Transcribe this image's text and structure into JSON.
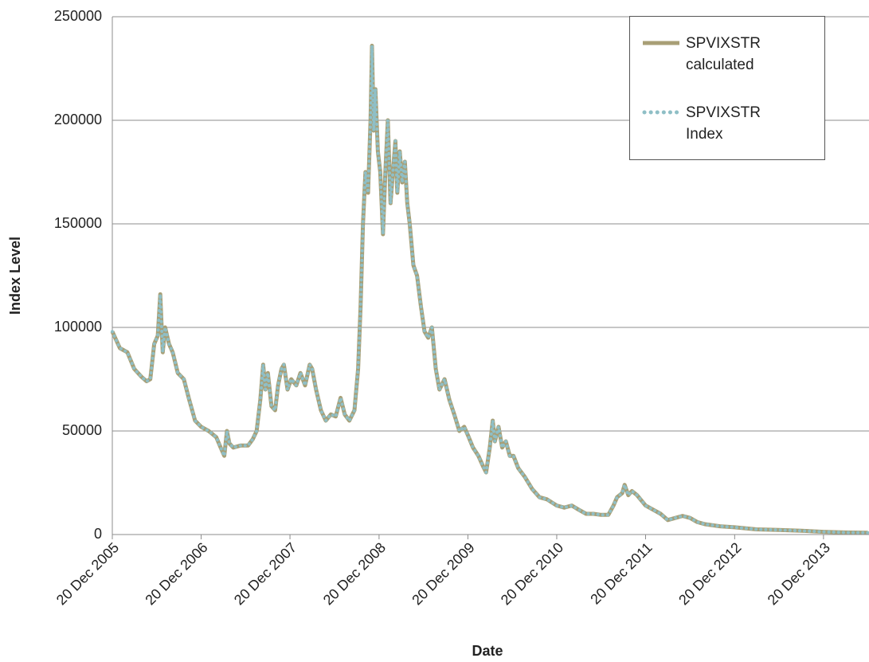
{
  "chart_data": {
    "type": "line",
    "xlabel": "Date",
    "ylabel": "Index Level",
    "x": [
      "2005-12-20",
      "2006-01-20",
      "2006-02-20",
      "2006-03-20",
      "2006-04-20",
      "2006-05-10",
      "2006-05-25",
      "2006-06-10",
      "2006-06-25",
      "2006-07-05",
      "2006-07-15",
      "2006-07-25",
      "2006-08-10",
      "2006-08-25",
      "2006-09-15",
      "2006-10-10",
      "2006-11-01",
      "2006-11-25",
      "2006-12-20",
      "2007-01-20",
      "2007-02-20",
      "2007-03-10",
      "2007-03-25",
      "2007-04-05",
      "2007-04-15",
      "2007-05-01",
      "2007-06-01",
      "2007-07-01",
      "2007-07-20",
      "2007-08-05",
      "2007-08-20",
      "2007-09-01",
      "2007-09-10",
      "2007-09-20",
      "2007-10-05",
      "2007-10-20",
      "2007-11-01",
      "2007-11-15",
      "2007-11-25",
      "2007-12-10",
      "2007-12-25",
      "2008-01-15",
      "2008-02-01",
      "2008-02-20",
      "2008-03-10",
      "2008-03-20",
      "2008-04-05",
      "2008-04-25",
      "2008-05-15",
      "2008-06-05",
      "2008-06-25",
      "2008-07-15",
      "2008-08-01",
      "2008-08-20",
      "2008-09-10",
      "2008-09-25",
      "2008-10-05",
      "2008-10-15",
      "2008-10-25",
      "2008-11-05",
      "2008-11-15",
      "2008-11-21",
      "2008-11-28",
      "2008-12-05",
      "2008-12-15",
      "2008-12-25",
      "2009-01-05",
      "2009-01-15",
      "2009-01-25",
      "2009-02-05",
      "2009-02-15",
      "2009-02-25",
      "2009-03-05",
      "2009-03-15",
      "2009-03-25",
      "2009-04-05",
      "2009-04-15",
      "2009-04-25",
      "2009-05-10",
      "2009-05-25",
      "2009-06-10",
      "2009-06-25",
      "2009-07-10",
      "2009-07-25",
      "2009-08-10",
      "2009-08-25",
      "2009-09-15",
      "2009-10-05",
      "2009-10-25",
      "2009-11-15",
      "2009-12-05",
      "2009-12-20",
      "2010-01-10",
      "2010-02-01",
      "2010-02-20",
      "2010-03-05",
      "2010-03-20",
      "2010-04-01",
      "2010-04-10",
      "2010-04-25",
      "2010-05-10",
      "2010-05-25",
      "2010-06-10",
      "2010-06-25",
      "2010-07-15",
      "2010-08-10",
      "2010-09-10",
      "2010-10-10",
      "2010-11-10",
      "2010-12-20",
      "2011-01-20",
      "2011-02-20",
      "2011-03-20",
      "2011-04-20",
      "2011-05-20",
      "2011-06-20",
      "2011-07-20",
      "2011-08-10",
      "2011-08-25",
      "2011-09-15",
      "2011-09-25",
      "2011-10-10",
      "2011-10-25",
      "2011-11-15",
      "2011-12-20",
      "2012-01-20",
      "2012-02-20",
      "2012-03-20",
      "2012-04-20",
      "2012-05-20",
      "2012-06-20",
      "2012-07-20",
      "2012-08-20",
      "2012-10-20",
      "2012-12-20",
      "2013-03-20",
      "2013-06-20",
      "2013-09-20",
      "2013-12-20",
      "2014-03-20",
      "2014-06-20"
    ],
    "series": [
      {
        "name": "SPVIXSTR calculated",
        "color": "#a89f76",
        "style": "solid",
        "values": [
          98000,
          90000,
          88000,
          80000,
          76000,
          74000,
          75000,
          92000,
          96000,
          116000,
          88000,
          100000,
          92000,
          88000,
          78000,
          75000,
          65000,
          55000,
          52000,
          50000,
          47000,
          42000,
          38000,
          50000,
          44000,
          42000,
          43000,
          43000,
          46000,
          50000,
          65000,
          82000,
          70000,
          78000,
          62000,
          60000,
          72000,
          80000,
          82000,
          70000,
          75000,
          72000,
          78000,
          72000,
          82000,
          80000,
          70000,
          60000,
          55000,
          58000,
          57000,
          66000,
          58000,
          55000,
          60000,
          80000,
          110000,
          150000,
          175000,
          165000,
          200000,
          236000,
          195000,
          215000,
          185000,
          175000,
          145000,
          175000,
          200000,
          160000,
          175000,
          190000,
          165000,
          185000,
          170000,
          180000,
          160000,
          150000,
          130000,
          125000,
          110000,
          98000,
          95000,
          100000,
          80000,
          70000,
          75000,
          65000,
          58000,
          50000,
          52000,
          48000,
          42000,
          38000,
          33000,
          30000,
          42000,
          55000,
          45000,
          52000,
          42000,
          45000,
          38000,
          38000,
          32000,
          28000,
          22000,
          18000,
          17000,
          14000,
          13000,
          14000,
          12000,
          10000,
          10000,
          9500,
          9500,
          14000,
          18000,
          20000,
          24000,
          19000,
          21000,
          19000,
          14000,
          12000,
          10000,
          7000,
          8000,
          9000,
          8000,
          6000,
          5000,
          4000,
          3500,
          2500,
          2200,
          1800,
          1300,
          1000,
          900
        ]
      },
      {
        "name": "SPVIXSTR Index",
        "color": "#8fbfc6",
        "style": "dotted",
        "values": [
          98000,
          90000,
          88000,
          80000,
          76000,
          74000,
          75000,
          92000,
          96000,
          116000,
          88000,
          100000,
          92000,
          88000,
          78000,
          75000,
          65000,
          55000,
          52000,
          50000,
          47000,
          42000,
          38000,
          50000,
          44000,
          42000,
          43000,
          43000,
          46000,
          50000,
          65000,
          82000,
          70000,
          78000,
          62000,
          60000,
          72000,
          80000,
          82000,
          70000,
          75000,
          72000,
          78000,
          72000,
          82000,
          80000,
          70000,
          60000,
          55000,
          58000,
          57000,
          66000,
          58000,
          55000,
          60000,
          80000,
          110000,
          150000,
          175000,
          165000,
          200000,
          236000,
          195000,
          215000,
          185000,
          175000,
          145000,
          175000,
          200000,
          160000,
          175000,
          190000,
          165000,
          185000,
          170000,
          180000,
          160000,
          150000,
          130000,
          125000,
          110000,
          98000,
          95000,
          100000,
          80000,
          70000,
          75000,
          65000,
          58000,
          50000,
          52000,
          48000,
          42000,
          38000,
          33000,
          30000,
          42000,
          55000,
          45000,
          52000,
          42000,
          45000,
          38000,
          38000,
          32000,
          28000,
          22000,
          18000,
          17000,
          14000,
          13000,
          14000,
          12000,
          10000,
          10000,
          9500,
          9500,
          14000,
          18000,
          20000,
          24000,
          19000,
          21000,
          19000,
          14000,
          12000,
          10000,
          7000,
          8000,
          9000,
          8000,
          6000,
          5000,
          4000,
          3500,
          2500,
          2200,
          1800,
          1300,
          1000,
          900
        ]
      }
    ],
    "xlim": [
      "2005-12-20",
      "2014-06-25"
    ],
    "xticks": [
      {
        "value": "2005-12-20",
        "label": "20 Dec 2005"
      },
      {
        "value": "2006-12-20",
        "label": "20 Dec 2006"
      },
      {
        "value": "2007-12-20",
        "label": "20 Dec 2007"
      },
      {
        "value": "2008-12-20",
        "label": "20 Dec 2008"
      },
      {
        "value": "2009-12-20",
        "label": "20 Dec 2009"
      },
      {
        "value": "2010-12-20",
        "label": "20 Dec 2010"
      },
      {
        "value": "2011-12-20",
        "label": "20 Dec 2011"
      },
      {
        "value": "2012-12-20",
        "label": "20 Dec 2012"
      },
      {
        "value": "2013-12-20",
        "label": "20 Dec 2013"
      }
    ],
    "ylim": [
      0,
      250000
    ],
    "yticks": [
      0,
      50000,
      100000,
      150000,
      200000,
      250000
    ],
    "grid": true,
    "legend": "top-right"
  }
}
